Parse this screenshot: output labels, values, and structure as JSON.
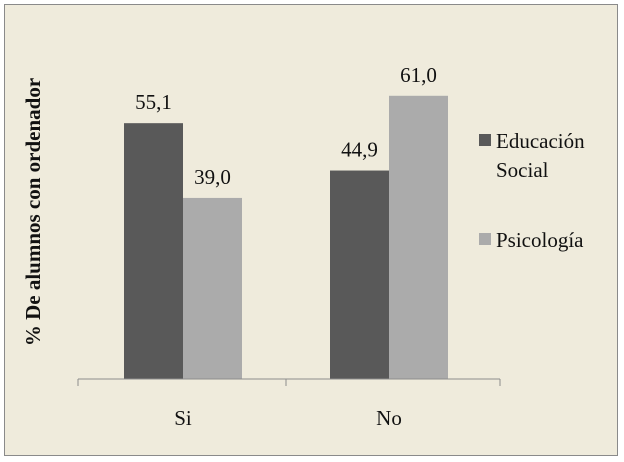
{
  "chart_data": {
    "type": "bar",
    "title": "",
    "xlabel": "",
    "ylabel": "% De alumnos con ordenador",
    "categories": [
      "Si",
      "No"
    ],
    "series": [
      {
        "name": "Educación Social",
        "values": [
          55.1,
          44.9
        ],
        "labels": [
          "55,1",
          "44,9"
        ],
        "color": "#595959"
      },
      {
        "name": "Psicología",
        "values": [
          39.0,
          61.0
        ],
        "labels": [
          "39,0",
          "61,0"
        ],
        "color": "#ababab"
      }
    ],
    "ylim": [
      0,
      70
    ],
    "grid": false,
    "legend_position": "right",
    "legend_lines": [
      [
        "Educación",
        "Social"
      ],
      [
        "Psicología"
      ]
    ]
  }
}
